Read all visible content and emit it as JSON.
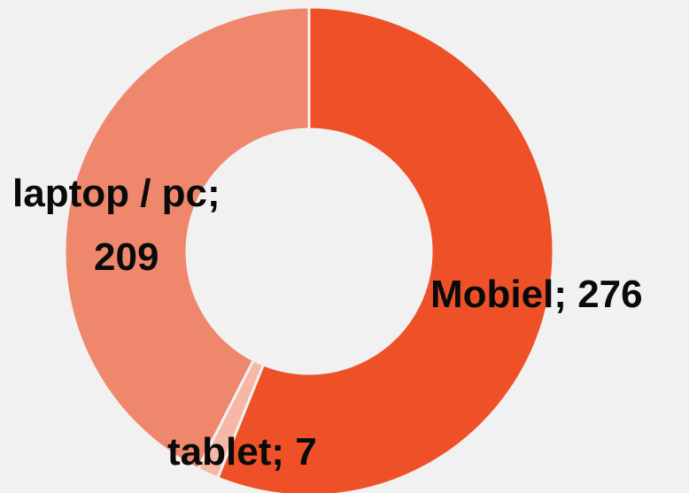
{
  "chart_data": {
    "type": "pie",
    "variant": "donut",
    "start_angle_deg": 0,
    "direction": "clockwise",
    "slices": [
      {
        "name": "Mobiel",
        "value": 276,
        "color": "#ee5128",
        "label_lines": [
          "Mobiel; 276"
        ]
      },
      {
        "name": "tablet",
        "value": 7,
        "color": "#f7b7a5",
        "label_lines": [
          "tablet; 7"
        ]
      },
      {
        "name": "laptop / pc",
        "value": 209,
        "color": "#ee876c",
        "label_lines": [
          "laptop / pc;",
          "209"
        ]
      }
    ],
    "separator_color": "#f2f1f1",
    "background": "#f2f1f1"
  }
}
